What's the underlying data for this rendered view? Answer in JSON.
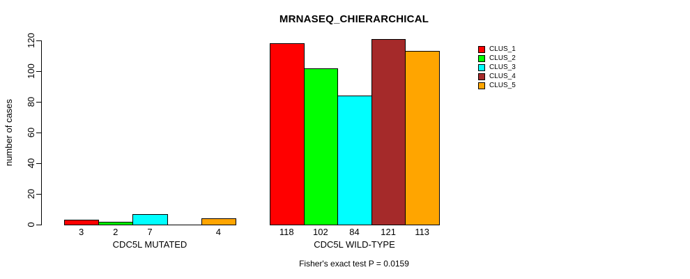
{
  "page": {
    "background_color": "#FFFFFF",
    "text_color": "#000000"
  },
  "chart_data": {
    "type": "bar",
    "title": "MRNASEQ_CHIERARCHICAL",
    "ylabel": "number of cases",
    "xlabel": "",
    "ylim": [
      0,
      120
    ],
    "yticks": [
      0,
      20,
      40,
      60,
      80,
      100,
      120
    ],
    "grid": false,
    "legend_position": "right",
    "categories": [
      "CLUS_1",
      "CLUS_2",
      "CLUS_3",
      "CLUS_4",
      "CLUS_5"
    ],
    "colors": [
      "#FF0000",
      "#00FF00",
      "#00FFFF",
      "#A52A2A",
      "#FFA500"
    ],
    "groups": [
      {
        "label": "CDC5L MUTATED",
        "values": [
          3,
          2,
          7,
          0,
          4
        ],
        "bar_labels": [
          "3",
          "2",
          "7",
          "",
          "4"
        ]
      },
      {
        "label": "CDC5L WILD-TYPE",
        "values": [
          118,
          102,
          84,
          121,
          113
        ],
        "bar_labels": [
          "118",
          "102",
          "84",
          "121",
          "113"
        ]
      }
    ],
    "legend": [
      {
        "label": "CLUS_1",
        "color": "#FF0000"
      },
      {
        "label": "CLUS_2",
        "color": "#00FF00"
      },
      {
        "label": "CLUS_3",
        "color": "#00FFFF"
      },
      {
        "label": "CLUS_4",
        "color": "#A52A2A"
      },
      {
        "label": "CLUS_5",
        "color": "#FFA500"
      }
    ],
    "annotation": "Fisher's exact test P = 0.0159"
  }
}
